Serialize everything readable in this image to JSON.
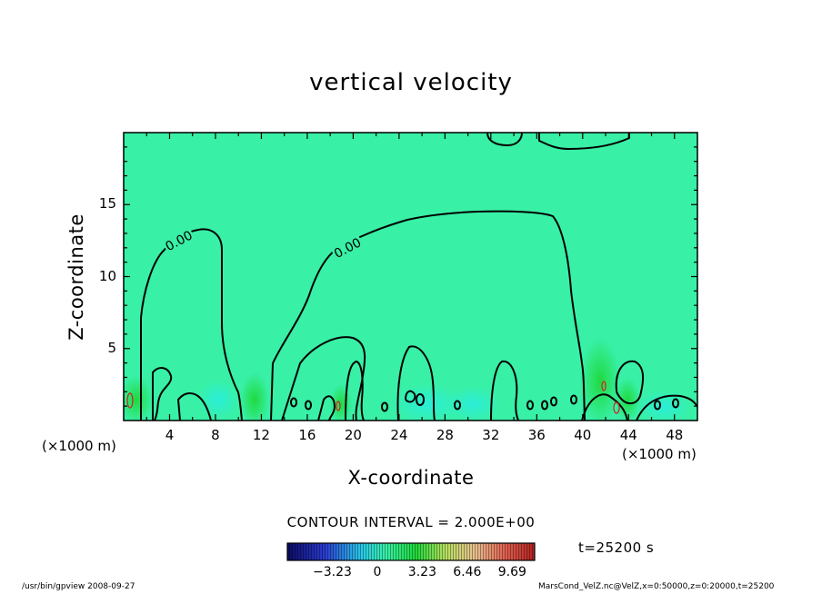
{
  "chart_data": {
    "type": "contour",
    "title": "vertical velocity",
    "xlabel": "X-coordinate",
    "ylabel": "Z-coordinate",
    "x_unit_label": "(×1000 m)",
    "xlim": [
      0,
      50
    ],
    "ylim": [
      0,
      20
    ],
    "xticks": [
      4,
      8,
      12,
      16,
      20,
      24,
      28,
      32,
      36,
      40,
      44,
      48
    ],
    "yticks": [
      5,
      10,
      15
    ],
    "contour_labels": [
      {
        "text": "0.00",
        "x": 4.8,
        "y": 12.5
      },
      {
        "text": "0.00",
        "x": 19.5,
        "y": 12.0
      }
    ],
    "contour_interval_text": "CONTOUR INTERVAL = 2.000E+00",
    "time_text": "t=25200 s",
    "colorbar": {
      "ticks": [
        {
          "label": "-3.23",
          "value": -3.23
        },
        {
          "label": "0",
          "value": 0
        },
        {
          "label": "3.23",
          "value": 3.23
        },
        {
          "label": "6.46",
          "value": 6.46
        },
        {
          "label": "9.69",
          "value": 9.69
        }
      ],
      "min": -6.46,
      "max": 11.3
    },
    "colors": {
      "background": "#38f0a6",
      "positive": "#1ed83a",
      "negative": "#29eedb"
    }
  },
  "footer": {
    "left": "/usr/bin/gpview   2008-09-27",
    "right": "MarsCond_VelZ.nc@VelZ,x=0:50000,z=0:20000,t=25200"
  }
}
